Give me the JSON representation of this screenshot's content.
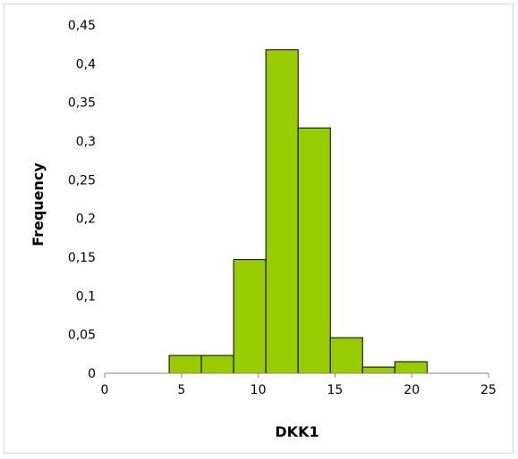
{
  "chart_data": {
    "type": "bar",
    "title": "",
    "xlabel": "DKK1",
    "ylabel": "Frequency",
    "xlim": [
      0,
      25
    ],
    "ylim": [
      0,
      0.45
    ],
    "x_ticks": [
      0,
      5,
      10,
      15,
      20,
      25
    ],
    "x_tick_labels": [
      "0",
      "5",
      "10",
      "15",
      "20",
      "25"
    ],
    "y_ticks": [
      0,
      0.05,
      0.1,
      0.15,
      0.2,
      0.25,
      0.3,
      0.35,
      0.4,
      0.45
    ],
    "y_tick_labels": [
      "0",
      "0,05",
      "0,1",
      "0,15",
      "0,2",
      "0,25",
      "0,3",
      "0,35",
      "0,4",
      "0,45"
    ],
    "grid": false,
    "legend": false,
    "bar_color": "#99cc00",
    "bar_edge_color": "#000000",
    "bins": [
      {
        "x0": 4.2,
        "x1": 6.3,
        "value": 0.023
      },
      {
        "x0": 6.3,
        "x1": 8.4,
        "value": 0.023
      },
      {
        "x0": 8.4,
        "x1": 10.5,
        "value": 0.147
      },
      {
        "x0": 10.5,
        "x1": 12.6,
        "value": 0.418
      },
      {
        "x0": 12.6,
        "x1": 14.7,
        "value": 0.317
      },
      {
        "x0": 14.7,
        "x1": 16.8,
        "value": 0.046
      },
      {
        "x0": 16.8,
        "x1": 18.9,
        "value": 0.008
      },
      {
        "x0": 18.9,
        "x1": 21.0,
        "value": 0.015
      }
    ]
  }
}
